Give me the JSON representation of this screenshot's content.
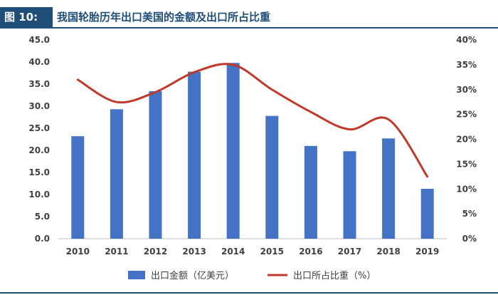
{
  "figure": {
    "label": "图 10:",
    "title": "我国轮胎历年出口美国的金额及出口所占比重"
  },
  "chart_data": {
    "type": "bar+line",
    "categories": [
      "2010",
      "2011",
      "2012",
      "2013",
      "2014",
      "2015",
      "2016",
      "2017",
      "2018",
      "2019"
    ],
    "series": [
      {
        "name": "出口金额（亿美元）",
        "type": "bar",
        "axis": "left",
        "values": [
          23.2,
          29.3,
          33.4,
          37.8,
          39.8,
          27.8,
          21.0,
          19.8,
          22.7,
          11.3
        ],
        "color": "#4472c4"
      },
      {
        "name": "出口所占比重（%）",
        "type": "line",
        "axis": "right",
        "values": [
          32,
          27.5,
          29.5,
          33.5,
          35,
          30,
          25.5,
          22,
          24,
          12.5
        ],
        "color": "#c0392b"
      }
    ],
    "y_left": {
      "min": 0,
      "max": 45,
      "step": 5,
      "ticks": [
        "0.0",
        "5.0",
        "10.0",
        "15.0",
        "20.0",
        "25.0",
        "30.0",
        "35.0",
        "40.0",
        "45.0"
      ]
    },
    "y_right": {
      "min": 0,
      "max": 40,
      "step": 5,
      "ticks": [
        "0%",
        "5%",
        "10%",
        "15%",
        "20%",
        "25%",
        "30%",
        "35%",
        "40%"
      ]
    },
    "legend_position": "bottom"
  }
}
